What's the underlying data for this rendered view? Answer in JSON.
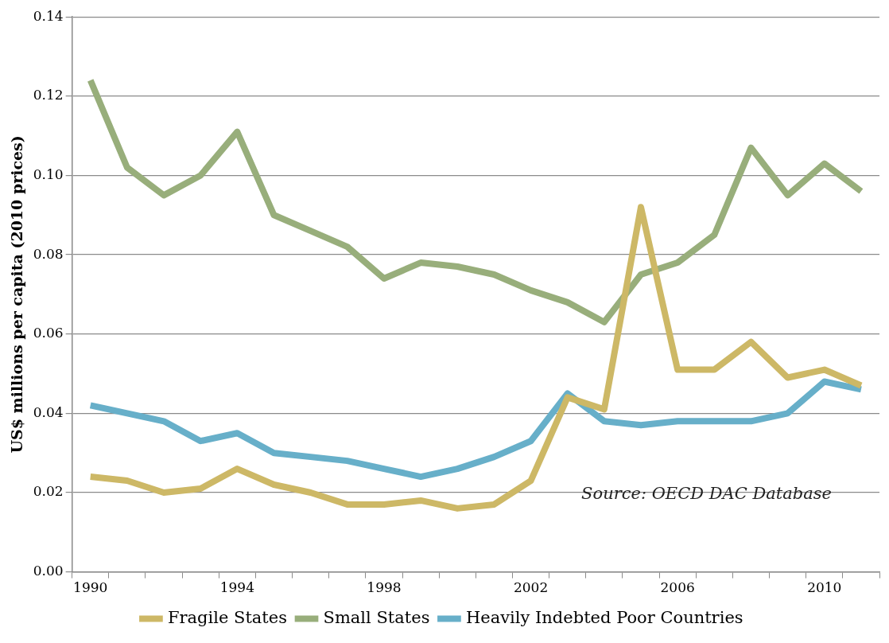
{
  "chart_data": {
    "type": "line",
    "ylabel": "US$ millions per capita (2010 prices)",
    "categories": [
      "1990",
      null,
      null,
      null,
      "1994",
      null,
      null,
      null,
      "1998",
      null,
      null,
      null,
      "2002",
      null,
      null,
      null,
      "2006",
      null,
      null,
      null,
      "2010",
      null
    ],
    "series": [
      {
        "name": "Fragile States",
        "color": "#cdb866",
        "values": [
          0.024,
          0.023,
          0.02,
          0.021,
          0.026,
          0.022,
          0.02,
          0.017,
          0.017,
          0.018,
          0.016,
          0.017,
          0.023,
          0.044,
          0.041,
          0.092,
          0.051,
          0.051,
          0.058,
          0.049,
          0.051,
          0.047
        ]
      },
      {
        "name": "Small States",
        "color": "#98ae7b",
        "values": [
          0.124,
          0.102,
          0.095,
          0.1,
          0.111,
          0.09,
          0.086,
          0.082,
          0.074,
          0.078,
          0.077,
          0.075,
          0.071,
          0.068,
          0.063,
          0.075,
          0.078,
          0.085,
          0.107,
          0.095,
          0.103,
          0.096
        ]
      },
      {
        "name": "Heavily Indebted Poor Countries",
        "color": "#67afc9",
        "values": [
          0.042,
          0.04,
          0.038,
          0.033,
          0.035,
          0.03,
          0.029,
          0.028,
          0.026,
          0.024,
          0.026,
          0.029,
          0.033,
          0.045,
          0.038,
          0.037,
          0.038,
          0.038,
          0.038,
          0.04,
          0.048,
          0.046
        ]
      }
    ],
    "ylim": [
      0,
      0.14
    ],
    "yticks": [
      {
        "value": 0,
        "label": "0.00"
      },
      0.02,
      0.04,
      0.06,
      0.08,
      {
        "value": 0.1,
        "label": "0.10"
      },
      0.12,
      0.14
    ],
    "grid": "y",
    "legend": "bottom",
    "marker": "none",
    "line_style": "solid",
    "annotations": [
      "Source: OECD DAC Database"
    ]
  }
}
